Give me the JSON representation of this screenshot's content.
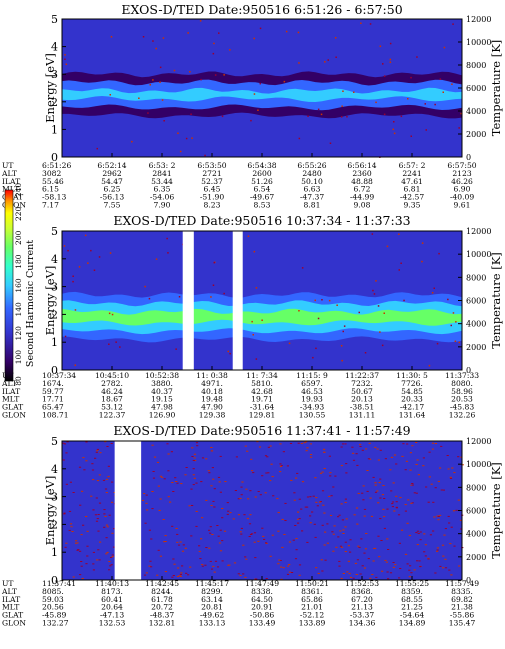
{
  "chart_data": [
    {
      "type": "heatmap",
      "title": "EXOS-D/TED   Date:950516  6:51:26 - 6:57:50",
      "ylabel": "Energy [eV]",
      "y2label": "Temperature [K]",
      "ylim": [
        0,
        5
      ],
      "y2lim": [
        0,
        12000
      ],
      "yticks": [
        "0",
        "1",
        "2",
        "3",
        "4",
        "5"
      ],
      "y2ticks": [
        "0",
        "2000",
        "4000",
        "6000",
        "8000",
        "10000",
        "12000"
      ],
      "bands": [
        {
          "lo": 1.5,
          "hi": 3.0,
          "level": 100
        },
        {
          "lo": 1.8,
          "hi": 2.7,
          "level": 130
        },
        {
          "lo": 2.1,
          "hi": 2.4,
          "level": 145
        }
      ],
      "gaps": [],
      "table": {
        "row_labels": [
          "UT",
          "ALT",
          "ILAT",
          "MLT",
          "GLAT",
          "GLON"
        ],
        "columns": [
          [
            "6:51:26",
            "3082",
            "55.46",
            "6.15",
            "-58.13",
            "7.17"
          ],
          [
            "6:52:14",
            "2962",
            "54.47",
            "6.25",
            "-56.13",
            "7.55"
          ],
          [
            "6:53: 2",
            "2841",
            "53.44",
            "6.35",
            "-54.06",
            "7.90"
          ],
          [
            "6:53:50",
            "2721",
            "52.37",
            "6.45",
            "-51.90",
            "8.23"
          ],
          [
            "6:54:38",
            "2600",
            "51.26",
            "6.54",
            "-49.67",
            "8.53"
          ],
          [
            "6:55:26",
            "2480",
            "50.10",
            "6.63",
            "-47.37",
            "8.81"
          ],
          [
            "6:56:14",
            "2360",
            "48.88",
            "6.72",
            "-44.99",
            "9.08"
          ],
          [
            "6:57: 2",
            "2241",
            "47.61",
            "6.81",
            "-42.57",
            "9.35"
          ],
          [
            "6:57:50",
            "2123",
            "46.26",
            "6.90",
            "-40.09",
            "9.61"
          ]
        ]
      }
    },
    {
      "type": "heatmap",
      "title": "EXOS-D/TED   Date:950516  10:37:34 - 11:37:33",
      "ylabel": "Energy [eV]",
      "y2label": "Temperature [K]",
      "ylim": [
        0,
        5
      ],
      "y2lim": [
        0,
        12000
      ],
      "yticks": [
        "0",
        "1",
        "2",
        "3",
        "4",
        "5"
      ],
      "y2ticks": [
        "0",
        "2000",
        "4000",
        "6000",
        "8000",
        "10000",
        "12000"
      ],
      "bands": [
        {
          "lo": 1.1,
          "hi": 2.7,
          "level": 120
        },
        {
          "lo": 1.4,
          "hi": 2.4,
          "level": 150
        },
        {
          "lo": 1.7,
          "hi": 2.1,
          "level": 170
        }
      ],
      "gaps": [
        [
          "10:55:40",
          "10:57:20"
        ],
        [
          "11:03:10",
          "11:04:40"
        ]
      ],
      "table": {
        "row_labels": [
          "UT",
          "ALT",
          "ILAT",
          "MLT",
          "GLAT",
          "GLON"
        ],
        "columns": [
          [
            "10:37:34",
            "1674.",
            "59.77",
            "17.71",
            "65.47",
            "108.71"
          ],
          [
            "10:45:10",
            "2782.",
            "46.24",
            "18.67",
            "53.12",
            "122.37"
          ],
          [
            "10:52:38",
            "3880.",
            "40.37",
            "19.15",
            "47.98",
            "126.90"
          ],
          [
            "11: 0:38",
            "4971.",
            "40.18",
            "19.48",
            "47.90",
            "129.38"
          ],
          [
            "11: 7:34",
            "5810.",
            "42.68",
            "19.71",
            "-31.64",
            "129.81"
          ],
          [
            "11:15: 9",
            "6597.",
            "46.53",
            "19.93",
            "-34.93",
            "130.55"
          ],
          [
            "11:22:37",
            "7232.",
            "50.67",
            "20.13",
            "-38.51",
            "131.11"
          ],
          [
            "11:30: 5",
            "7726.",
            "54.85",
            "20.33",
            "-42.17",
            "131.64"
          ],
          [
            "11:37:33",
            "8080.",
            "58.96",
            "20.53",
            "-45.83",
            "132.26"
          ]
        ]
      }
    },
    {
      "type": "heatmap",
      "title": "EXOS-D/TED   Date:950516  11:37:41 - 11:57:49",
      "ylabel": "Energy [eV]",
      "y2label": "Temperature [K]",
      "ylim": [
        0,
        5
      ],
      "y2lim": [
        0,
        12000
      ],
      "yticks": [
        "0",
        "1",
        "2",
        "3",
        "4",
        "5"
      ],
      "y2ticks": [
        "0",
        "2000",
        "4000",
        "6000",
        "8000",
        "10000",
        "12000"
      ],
      "bands": [],
      "gaps": [
        [
          "11:40:20",
          "11:41:40"
        ]
      ],
      "table": {
        "row_labels": [
          "UT",
          "ALT",
          "ILAT",
          "MLT",
          "GLAT",
          "GLON"
        ],
        "columns": [
          [
            "11:37:41",
            "8085.",
            "59.03",
            "20.56",
            "-45.89",
            "132.27"
          ],
          [
            "11:40:13",
            "8173.",
            "60.41",
            "20.64",
            "-47.13",
            "132.53"
          ],
          [
            "11:42:45",
            "8244.",
            "61.78",
            "20.72",
            "-48.37",
            "132.81"
          ],
          [
            "11:45:17",
            "8299.",
            "63.14",
            "20.81",
            "-49.62",
            "133.13"
          ],
          [
            "11:47:49",
            "8338.",
            "64.50",
            "20.91",
            "-50.86",
            "133.49"
          ],
          [
            "11:50:21",
            "8361.",
            "65.86",
            "21.01",
            "-52.12",
            "133.89"
          ],
          [
            "11:52:53",
            "8368.",
            "67.20",
            "21.13",
            "-53.37",
            "134.36"
          ],
          [
            "11:55:25",
            "8359.",
            "68.55",
            "21.25",
            "-54.64",
            "134.89"
          ],
          [
            "11:57:49",
            "8335.",
            "69.82",
            "21.38",
            "-55.86",
            "135.47"
          ]
        ]
      }
    }
  ],
  "colorbar": {
    "label": "Second Harmonic Current",
    "ticks": [
      "80",
      "100",
      "120",
      "140",
      "160",
      "180",
      "200",
      "220",
      "240"
    ],
    "range": [
      80,
      240
    ]
  },
  "colors": {
    "background": "#3333cc",
    "scale": [
      "#000000",
      "#330066",
      "#3333cc",
      "#3366ff",
      "#33ccff",
      "#33ffcc",
      "#66ff66",
      "#ccff33",
      "#ffff00",
      "#ff9900",
      "#ff0000"
    ]
  }
}
